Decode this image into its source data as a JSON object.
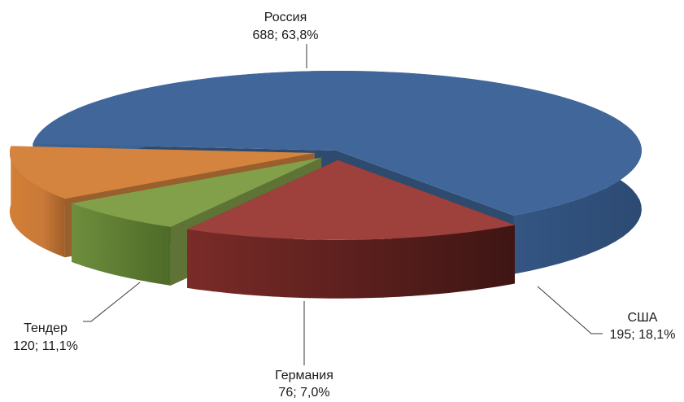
{
  "chart_data": {
    "type": "pie",
    "style": "3d-exploded",
    "title": "",
    "legend": "none",
    "slices": [
      {
        "name": "Россия",
        "value": 688,
        "percent": "63,8%",
        "label": "688; 63,8%",
        "color": "#41679A"
      },
      {
        "name": "США",
        "value": 195,
        "percent": "18,1%",
        "label": "195; 18,1%",
        "color": "#9E403C"
      },
      {
        "name": "Германия",
        "value": 76,
        "percent": "7,0%",
        "label": "76; 7,0%",
        "color": "#82A049"
      },
      {
        "name": "Тендер",
        "value": 120,
        "percent": "11,1%",
        "label": "120; 11,1%",
        "color": "#D4843E"
      }
    ]
  }
}
